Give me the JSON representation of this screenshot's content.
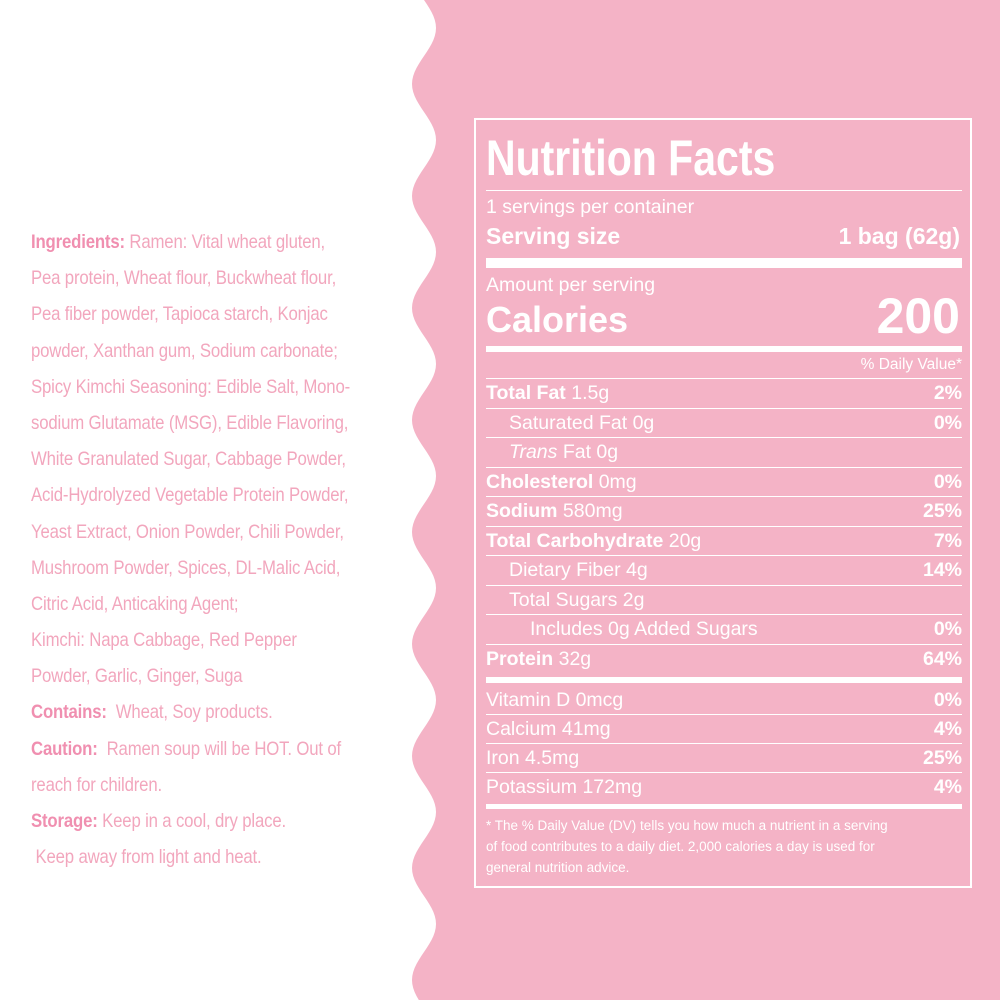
{
  "colors": {
    "background": "#ffffff",
    "panel_pink": "#f4b3c6",
    "text_pink": "#f2a6bd",
    "label_text": "#ffffff"
  },
  "ingredients": {
    "lines": [
      {
        "head": "Ingredients:",
        "text": " Ramen: Vital wheat gluten,"
      },
      {
        "head": "",
        "text": "Pea protein, Wheat flour, Buckwheat flour,"
      },
      {
        "head": "",
        "text": "Pea fiber powder, Tapioca starch, Konjac"
      },
      {
        "head": "",
        "text": "powder, Xanthan gum, Sodium carbonate;"
      },
      {
        "head": "",
        "text": "Spicy Kimchi Seasoning: Edible Salt, Mono-"
      },
      {
        "head": "",
        "text": "sodium Glutamate (MSG), Edible Flavoring,"
      },
      {
        "head": "",
        "text": "White Granulated Sugar, Cabbage Powder,"
      },
      {
        "head": "",
        "text": "Acid-Hydrolyzed Vegetable Protein Powder,"
      },
      {
        "head": "",
        "text": "Yeast Extract, Onion Powder, Chili Powder,"
      },
      {
        "head": "",
        "text": "Mushroom Powder, Spices, DL-Malic Acid,"
      },
      {
        "head": "",
        "text": "Citric Acid, Anticaking Agent;"
      },
      {
        "head": "",
        "text": "Kimchi: Napa Cabbage, Red Pepper"
      },
      {
        "head": "",
        "text": "Powder, Garlic, Ginger, Suga"
      },
      {
        "head": "Contains:",
        "text": "  Wheat, Soy products."
      },
      {
        "head": "Caution:",
        "text": "  Ramen soup will be HOT. Out of"
      },
      {
        "head": "",
        "text": "reach for children."
      },
      {
        "head": "Storage:",
        "text": " Keep in a cool, dry place."
      },
      {
        "head": "",
        "text": " Keep away from light and heat."
      }
    ]
  },
  "facts": {
    "title": "Nutrition Facts",
    "servings_per_container": "1 servings per container",
    "serving_size_label": "Serving size",
    "serving_size_value": "1 bag (62g)",
    "amount_per_serving": "Amount per serving",
    "calories_label": "Calories",
    "calories_value": "200",
    "daily_value_header": "% Daily Value*",
    "nutrients": [
      {
        "bold": "Total Fat",
        "italic": "",
        "rest": " 1.5g",
        "dv": "2%",
        "indent": 0
      },
      {
        "bold": "",
        "italic": "",
        "rest": "Saturated Fat 0g",
        "dv": "0%",
        "indent": 1
      },
      {
        "bold": "",
        "italic": "Trans",
        "rest": " Fat 0g",
        "dv": "",
        "indent": 1
      },
      {
        "bold": "Cholesterol",
        "italic": "",
        "rest": " 0mg",
        "dv": "0%",
        "indent": 0
      },
      {
        "bold": "Sodium",
        "italic": "",
        "rest": " 580mg",
        "dv": "25%",
        "indent": 0
      },
      {
        "bold": "Total Carbohydrate",
        "italic": "",
        "rest": " 20g",
        "dv": "7%",
        "indent": 0
      },
      {
        "bold": "",
        "italic": "",
        "rest": "Dietary Fiber 4g",
        "dv": "14%",
        "indent": 1
      },
      {
        "bold": "",
        "italic": "",
        "rest": "Total Sugars 2g",
        "dv": "",
        "indent": 1
      },
      {
        "bold": "",
        "italic": "",
        "rest": "Includes 0g Added Sugars",
        "dv": "0%",
        "indent": 2
      },
      {
        "bold": "Protein",
        "italic": "",
        "rest": " 32g",
        "dv": "64%",
        "indent": 0
      }
    ],
    "vitamins": [
      {
        "name": "Vitamin D 0mcg",
        "dv": "0%"
      },
      {
        "name": "Calcium 41mg",
        "dv": "4%"
      },
      {
        "name": "Iron 4.5mg",
        "dv": "25%"
      },
      {
        "name": "Potassium 172mg",
        "dv": "4%"
      }
    ],
    "footnote_lines": [
      "* The % Daily Value  (DV) tells you how much a nutrient in a serving",
      "of food contributes to a daily diet. 2,000 calories a day is used for",
      "general nutrition advice."
    ]
  }
}
